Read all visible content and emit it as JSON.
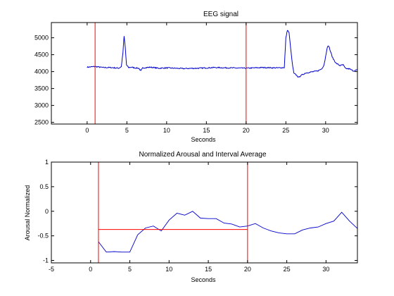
{
  "colors": {
    "background": "#ffffff",
    "signal": "#0000cc",
    "marker": "#ff0000",
    "axes": "#000000"
  },
  "chart_data": [
    {
      "type": "line",
      "title": "EEG signal",
      "xlabel": "Seconds",
      "ylabel": "",
      "xlim": [
        -4.5,
        34
      ],
      "ylim": [
        2450,
        5450
      ],
      "xticks": [
        0,
        5,
        10,
        15,
        20,
        25,
        30
      ],
      "yticks": [
        2500,
        3000,
        3500,
        4000,
        4500,
        5000
      ],
      "grid": false,
      "legend": "none",
      "series": [
        {
          "color": "#0000cc",
          "x": [
            0,
            1,
            2,
            3,
            4,
            4.3,
            4.5,
            4.65,
            4.8,
            4.95,
            5.2,
            5.6,
            6,
            6.5,
            6.75,
            7,
            8,
            9,
            10,
            12,
            14,
            16,
            18,
            20,
            22,
            24,
            24.8,
            25,
            25.2,
            25.4,
            25.6,
            25.8,
            26,
            26.3,
            26.6,
            27,
            27.5,
            28,
            28.5,
            29,
            29.5,
            29.8,
            30,
            30.2,
            30.4,
            30.6,
            30.9,
            31.3,
            31.8,
            32.2,
            32.5,
            33,
            33.5,
            34
          ],
          "values": [
            4130,
            4150,
            4120,
            4120,
            4100,
            4150,
            4550,
            5050,
            4700,
            4200,
            4120,
            4130,
            4110,
            4100,
            4020,
            4110,
            4130,
            4100,
            4110,
            4090,
            4100,
            4120,
            4110,
            4100,
            4120,
            4110,
            4120,
            5000,
            5230,
            5150,
            4700,
            4250,
            3950,
            3900,
            3830,
            3900,
            3960,
            3980,
            4000,
            4020,
            4080,
            4200,
            4450,
            4720,
            4760,
            4600,
            4400,
            4250,
            4180,
            4200,
            4090,
            4080,
            4020,
            4050
          ]
        }
      ],
      "markers": [
        1,
        20
      ]
    },
    {
      "type": "line",
      "title": "Normalized Arousal and Interval Average",
      "xlabel": "Seconds",
      "ylabel": "Arousal Normalized",
      "xlim": [
        -5,
        34
      ],
      "ylim": [
        -1.05,
        1
      ],
      "xticks": [
        -5,
        0,
        5,
        10,
        15,
        20,
        25,
        30
      ],
      "yticks": [
        -1,
        -0.5,
        0,
        0.5,
        1
      ],
      "grid": false,
      "legend": "none",
      "series": [
        {
          "color": "#0000cc",
          "x": [
            1,
            2,
            3,
            4,
            5,
            6,
            7,
            8,
            9,
            10,
            11,
            12,
            13,
            14,
            15,
            16,
            17,
            18,
            19,
            20,
            21,
            22,
            23,
            24,
            25,
            26,
            27,
            28,
            29,
            30,
            31,
            32,
            33,
            34
          ],
          "values": [
            -0.62,
            -0.83,
            -0.82,
            -0.83,
            -0.83,
            -0.48,
            -0.34,
            -0.3,
            -0.4,
            -0.18,
            -0.04,
            -0.08,
            0.0,
            -0.14,
            -0.15,
            -0.15,
            -0.24,
            -0.26,
            -0.32,
            -0.3,
            -0.25,
            -0.34,
            -0.4,
            -0.44,
            -0.46,
            -0.46,
            -0.38,
            -0.34,
            -0.32,
            -0.25,
            -0.2,
            -0.02,
            -0.2,
            -0.35
          ]
        }
      ],
      "interval_average": {
        "x_start": 1,
        "x_end": 20,
        "value": -0.37,
        "color": "#ff0000"
      },
      "markers": [
        1,
        20
      ]
    }
  ]
}
